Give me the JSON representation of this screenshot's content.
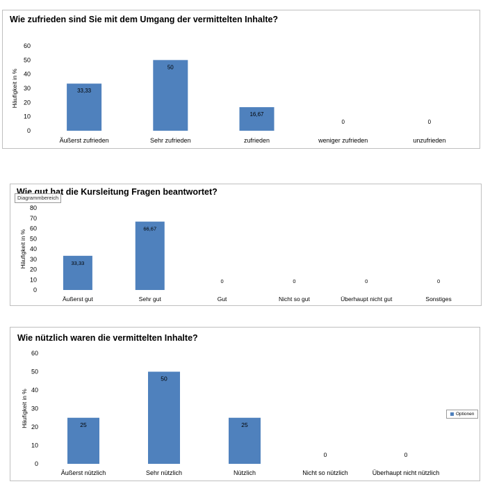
{
  "chart_data": [
    {
      "type": "bar",
      "title": "Wie zufrieden sind Sie mit dem Umgang der vermittelten Inhalte?",
      "ylabel": "Häufigkeit in %",
      "ylim": [
        0,
        60
      ],
      "yticks": [
        0,
        10,
        20,
        30,
        40,
        50,
        60
      ],
      "categories": [
        "Äußerst zufrieden",
        "Sehr zufrieden",
        "zufrieden",
        "weniger zufrieden",
        "unzufrieden"
      ],
      "values": [
        33.33,
        50,
        16.67,
        0,
        0
      ],
      "data_labels": [
        "33,33",
        "50",
        "16,67",
        "0",
        "0"
      ],
      "bar_color": "#4f81bd",
      "grid": false
    },
    {
      "type": "bar",
      "title": "Wie gut hat die Kursleitung Fragen beantwortet?",
      "ylabel": "Häufigkeit in %",
      "ylim": [
        0,
        80
      ],
      "yticks": [
        0,
        10,
        20,
        30,
        40,
        50,
        60,
        70,
        80
      ],
      "categories": [
        "Äußerst gut",
        "Sehr gut",
        "Gut",
        "Nicht so gut",
        "Überhaupt nicht gut",
        "Sonstiges"
      ],
      "values": [
        33.33,
        66.67,
        0,
        0,
        0,
        0
      ],
      "data_labels": [
        "33,33",
        "66,67",
        "0",
        "0",
        "0",
        "0"
      ],
      "bar_color": "#4f81bd",
      "grid": false,
      "tooltip": "Diagrammbereich"
    },
    {
      "type": "bar",
      "title": "Wie nützlich waren die vermittelten Inhalte?",
      "ylabel": "Häufigkeit in %",
      "ylim": [
        0,
        60
      ],
      "yticks": [
        0,
        10,
        20,
        30,
        40,
        50,
        60
      ],
      "categories": [
        "Äußerst nützlich",
        "Sehr nützlich",
        "Nützlich",
        "Nicht so nützlich",
        "Überhaupt nicht nützlich"
      ],
      "values": [
        25,
        50,
        25,
        0,
        0
      ],
      "data_labels": [
        "25",
        "50",
        "25",
        "0",
        "0"
      ],
      "bar_color": "#4f81bd",
      "grid": false,
      "legend": {
        "label": "Optionen",
        "placement": "right"
      }
    }
  ]
}
